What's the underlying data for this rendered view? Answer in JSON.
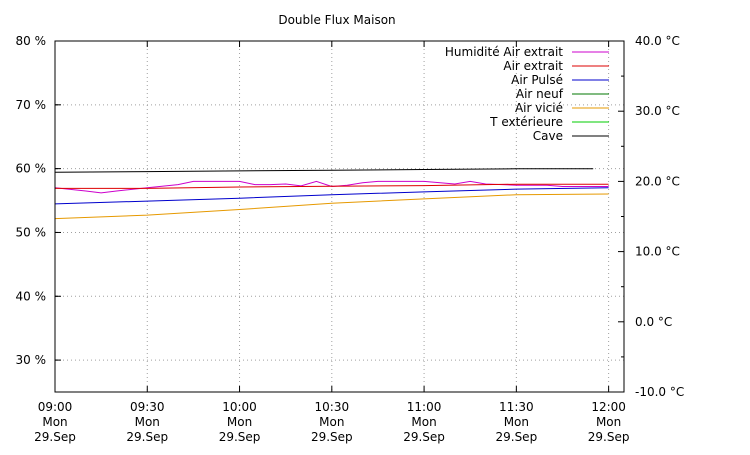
{
  "chart_data": {
    "type": "line",
    "title": "Double Flux Maison",
    "x_range": [
      "09:00",
      "12:05"
    ],
    "x_ticks": [
      {
        "x": "09:00",
        "lines": [
          "09:00",
          "Mon",
          "29.Sep"
        ]
      },
      {
        "x": "09:30",
        "lines": [
          "09:30",
          "Mon",
          "29.Sep"
        ]
      },
      {
        "x": "10:00",
        "lines": [
          "10:00",
          "Mon",
          "29.Sep"
        ]
      },
      {
        "x": "10:30",
        "lines": [
          "10:30",
          "Mon",
          "29.Sep"
        ]
      },
      {
        "x": "11:00",
        "lines": [
          "11:00",
          "Mon",
          "29.Sep"
        ]
      },
      {
        "x": "11:30",
        "lines": [
          "11:30",
          "Mon",
          "29.Sep"
        ]
      },
      {
        "x": "12:00",
        "lines": [
          "12:00",
          "Mon",
          "29.Sep"
        ]
      }
    ],
    "y_left": {
      "range": [
        25,
        80
      ],
      "ticks": [
        {
          "v": 30,
          "label": "30 %"
        },
        {
          "v": 40,
          "label": "40 %"
        },
        {
          "v": 50,
          "label": "50 %"
        },
        {
          "v": 60,
          "label": "60 %"
        },
        {
          "v": 70,
          "label": "70 %"
        },
        {
          "v": 80,
          "label": "80 %"
        }
      ]
    },
    "y_right": {
      "range": [
        -10,
        40
      ],
      "ticks": [
        {
          "v": -10,
          "label": "-10.0 °C"
        },
        {
          "v": 0,
          "label": "0.0 °C"
        },
        {
          "v": 10,
          "label": "10.0 °C"
        },
        {
          "v": 20,
          "label": "20.0 °C"
        },
        {
          "v": 30,
          "label": "30.0 °C"
        },
        {
          "v": 40,
          "label": "40.0 °C"
        }
      ]
    },
    "grid": true,
    "legend_position": "top-right",
    "series": [
      {
        "name": "Humidité Air extrait",
        "axis": "left",
        "color": "#cc00cc",
        "x": [
          "09:00",
          "09:10",
          "09:15",
          "09:20",
          "09:30",
          "09:40",
          "09:45",
          "10:00",
          "10:05",
          "10:10",
          "10:15",
          "10:20",
          "10:25",
          "10:30",
          "10:35",
          "10:40",
          "10:45",
          "11:00",
          "11:10",
          "11:15",
          "11:20",
          "11:30",
          "11:40",
          "11:45",
          "11:50",
          "12:00"
        ],
        "y": [
          57.0,
          56.5,
          56.2,
          56.5,
          57.0,
          57.5,
          58.0,
          58.0,
          57.5,
          57.5,
          57.6,
          57.3,
          58.0,
          57.2,
          57.4,
          57.8,
          58.0,
          58.0,
          57.6,
          58.0,
          57.6,
          57.4,
          57.4,
          57.2,
          57.2,
          57.2
        ]
      },
      {
        "name": "Air extrait",
        "axis": "right",
        "color": "#dd0000",
        "x": [
          "09:00",
          "09:30",
          "10:00",
          "10:30",
          "11:00",
          "11:30",
          "12:00"
        ],
        "y": [
          19.0,
          19.0,
          19.2,
          19.3,
          19.4,
          19.6,
          19.6
        ]
      },
      {
        "name": "Air Pulsé",
        "axis": "right",
        "color": "#0000cc",
        "x": [
          "09:00",
          "09:30",
          "10:00",
          "10:30",
          "11:00",
          "11:30",
          "12:00"
        ],
        "y": [
          16.8,
          17.2,
          17.6,
          18.1,
          18.5,
          18.9,
          19.1
        ]
      },
      {
        "name": "Air neuf",
        "axis": "right",
        "color": "#007700",
        "x": [],
        "y": []
      },
      {
        "name": "Air vicié",
        "axis": "right",
        "color": "#e69900",
        "x": [
          "09:00",
          "09:30",
          "10:00",
          "10:30",
          "11:00",
          "11:30",
          "12:00"
        ],
        "y": [
          14.7,
          15.2,
          16.0,
          16.9,
          17.5,
          18.1,
          18.2
        ]
      },
      {
        "name": "T extérieure",
        "axis": "right",
        "color": "#00cc00",
        "x": [],
        "y": []
      },
      {
        "name": "Cave",
        "axis": "right",
        "color": "#000000",
        "x": [
          "09:00",
          "09:30",
          "10:00",
          "10:30",
          "11:00",
          "11:30",
          "11:55"
        ],
        "y": [
          21.3,
          21.4,
          21.5,
          21.6,
          21.7,
          21.8,
          21.8
        ]
      }
    ]
  }
}
